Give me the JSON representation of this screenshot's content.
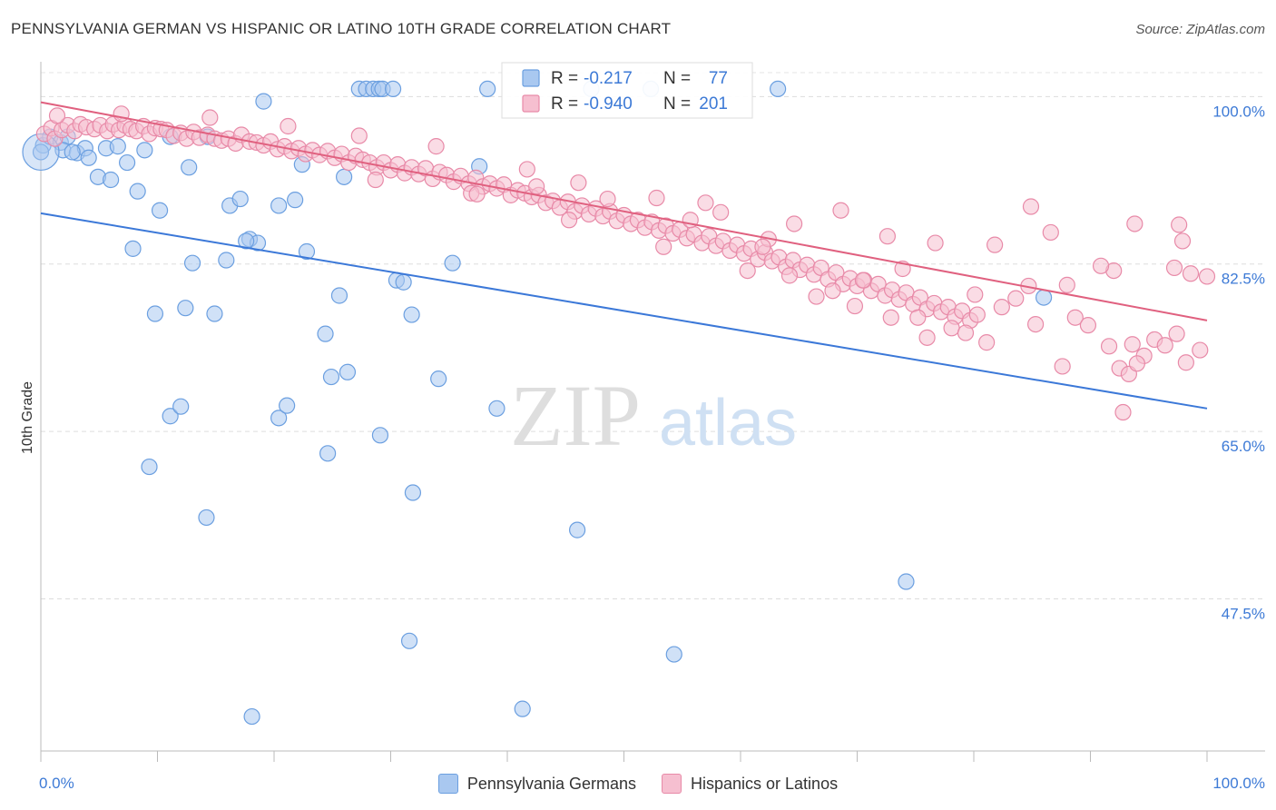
{
  "title": "PENNSYLVANIA GERMAN VS HISPANIC OR LATINO 10TH GRADE CORRELATION CHART",
  "source": "Source: ZipAtlas.com",
  "watermark": {
    "zip": "ZIP",
    "atlas": "atlas"
  },
  "chart_data": {
    "type": "scatter",
    "ylabel": "10th Grade",
    "xlim": [
      0,
      100
    ],
    "ylim": [
      31.6,
      102.5
    ],
    "x_tick_labels": [
      "0.0%",
      "100.0%"
    ],
    "y_ticks": [
      {
        "value": 100.0,
        "label": "100.0%"
      },
      {
        "value": 82.5,
        "label": "82.5%"
      },
      {
        "value": 65.0,
        "label": "65.0%"
      },
      {
        "value": 47.5,
        "label": "47.5%"
      }
    ],
    "grid": true,
    "legend_position": "bottom",
    "stats_box": [
      {
        "r_label": "R =",
        "r_value": "-0.217",
        "n_label": "N =",
        "n_value": "77"
      },
      {
        "r_label": "R =",
        "r_value": "-0.940",
        "n_label": "N =",
        "n_value": "201"
      }
    ],
    "series": [
      {
        "name": "Pennsylvania Germans",
        "color": "#6b9fe0",
        "fill": "#a9c8f0",
        "line_color": "#3b78d8",
        "trend": [
          [
            0,
            87.8
          ],
          [
            100,
            67.4
          ]
        ],
        "points": [
          [
            0.2,
            94.9
          ],
          [
            0.8,
            95.8
          ],
          [
            1.7,
            95.2
          ],
          [
            2.3,
            95.8
          ],
          [
            1.9,
            94.4
          ],
          [
            3.1,
            94.1
          ],
          [
            3.8,
            94.6
          ],
          [
            2.7,
            94.2
          ],
          [
            4.1,
            93.6
          ],
          [
            4.9,
            91.6
          ],
          [
            6.0,
            91.3
          ],
          [
            5.6,
            94.6
          ],
          [
            6.6,
            94.8
          ],
          [
            7.4,
            93.1
          ],
          [
            8.9,
            94.4
          ],
          [
            8.3,
            90.1
          ],
          [
            10.2,
            88.1
          ],
          [
            11.1,
            95.8
          ],
          [
            12.7,
            92.6
          ],
          [
            14.3,
            95.8
          ],
          [
            16.2,
            88.6
          ],
          [
            17.1,
            89.3
          ],
          [
            17.9,
            85.1
          ],
          [
            18.6,
            84.7
          ],
          [
            19.1,
            99.5
          ],
          [
            20.4,
            88.6
          ],
          [
            21.8,
            89.2
          ],
          [
            22.4,
            92.9
          ],
          [
            26.0,
            91.6
          ],
          [
            27.3,
            100.8
          ],
          [
            27.9,
            100.8
          ],
          [
            28.5,
            100.8
          ],
          [
            29.0,
            100.8
          ],
          [
            29.3,
            100.8
          ],
          [
            30.2,
            100.8
          ],
          [
            37.6,
            92.7
          ],
          [
            38.3,
            100.8
          ],
          [
            47.2,
            100.8
          ],
          [
            52.3,
            100.8
          ],
          [
            63.2,
            100.8
          ],
          [
            7.9,
            84.1
          ],
          [
            13.0,
            82.6
          ],
          [
            15.9,
            82.9
          ],
          [
            17.6,
            84.9
          ],
          [
            22.8,
            83.8
          ],
          [
            30.5,
            80.8
          ],
          [
            31.1,
            80.6
          ],
          [
            35.3,
            82.6
          ],
          [
            9.8,
            77.3
          ],
          [
            12.4,
            77.9
          ],
          [
            14.9,
            77.3
          ],
          [
            25.6,
            79.2
          ],
          [
            31.8,
            77.2
          ],
          [
            24.4,
            75.2
          ],
          [
            24.9,
            70.7
          ],
          [
            26.3,
            71.2
          ],
          [
            34.1,
            70.5
          ],
          [
            11.1,
            66.6
          ],
          [
            12.0,
            67.6
          ],
          [
            20.4,
            66.4
          ],
          [
            21.1,
            67.7
          ],
          [
            29.1,
            64.6
          ],
          [
            39.1,
            67.4
          ],
          [
            9.3,
            61.3
          ],
          [
            24.6,
            62.7
          ],
          [
            31.9,
            58.6
          ],
          [
            14.2,
            56.0
          ],
          [
            46.0,
            54.7
          ],
          [
            74.2,
            49.3
          ],
          [
            31.6,
            43.1
          ],
          [
            54.3,
            41.7
          ],
          [
            18.1,
            35.2
          ],
          [
            41.3,
            36.0
          ],
          [
            86.0,
            79.0
          ],
          [
            0.0,
            94.2
          ]
        ]
      },
      {
        "name": "Hispanics or Latinos",
        "color": "#e88aa8",
        "fill": "#f6bfd0",
        "line_color": "#e0607f",
        "trend": [
          [
            0,
            99.4
          ],
          [
            100,
            76.6
          ]
        ],
        "points": [
          [
            0.3,
            96.1
          ],
          [
            0.9,
            96.7
          ],
          [
            1.2,
            95.6
          ],
          [
            1.8,
            96.5
          ],
          [
            2.3,
            97.0
          ],
          [
            2.9,
            96.4
          ],
          [
            3.4,
            97.1
          ],
          [
            3.9,
            96.8
          ],
          [
            4.6,
            96.6
          ],
          [
            5.1,
            97.0
          ],
          [
            5.7,
            96.4
          ],
          [
            6.2,
            97.1
          ],
          [
            6.7,
            96.5
          ],
          [
            7.2,
            97.0
          ],
          [
            7.7,
            96.6
          ],
          [
            8.2,
            96.4
          ],
          [
            8.8,
            96.9
          ],
          [
            9.3,
            96.1
          ],
          [
            9.8,
            96.7
          ],
          [
            10.3,
            96.6
          ],
          [
            10.8,
            96.5
          ],
          [
            11.4,
            95.9
          ],
          [
            12.0,
            96.2
          ],
          [
            12.5,
            95.6
          ],
          [
            13.1,
            96.3
          ],
          [
            13.6,
            95.7
          ],
          [
            14.3,
            96.0
          ],
          [
            14.9,
            95.6
          ],
          [
            15.5,
            95.4
          ],
          [
            16.1,
            95.6
          ],
          [
            16.7,
            95.1
          ],
          [
            17.2,
            96.0
          ],
          [
            17.9,
            95.3
          ],
          [
            18.5,
            95.2
          ],
          [
            19.1,
            94.9
          ],
          [
            19.7,
            95.3
          ],
          [
            20.3,
            94.5
          ],
          [
            20.9,
            94.8
          ],
          [
            21.5,
            94.3
          ],
          [
            22.1,
            94.6
          ],
          [
            22.7,
            94.0
          ],
          [
            23.3,
            94.4
          ],
          [
            23.9,
            93.9
          ],
          [
            24.6,
            94.3
          ],
          [
            25.2,
            93.6
          ],
          [
            25.8,
            94.0
          ],
          [
            26.4,
            93.1
          ],
          [
            27.0,
            93.8
          ],
          [
            27.6,
            93.4
          ],
          [
            28.2,
            93.1
          ],
          [
            28.8,
            92.6
          ],
          [
            29.4,
            93.1
          ],
          [
            30.0,
            92.3
          ],
          [
            30.6,
            92.9
          ],
          [
            31.2,
            92.0
          ],
          [
            31.8,
            92.6
          ],
          [
            32.4,
            91.9
          ],
          [
            33.0,
            92.5
          ],
          [
            33.6,
            91.4
          ],
          [
            34.2,
            92.1
          ],
          [
            34.8,
            91.8
          ],
          [
            35.4,
            91.1
          ],
          [
            36.0,
            91.7
          ],
          [
            36.7,
            90.9
          ],
          [
            37.3,
            91.5
          ],
          [
            37.9,
            90.6
          ],
          [
            38.5,
            90.9
          ],
          [
            39.1,
            90.4
          ],
          [
            39.7,
            90.8
          ],
          [
            40.3,
            89.7
          ],
          [
            40.9,
            90.2
          ],
          [
            41.5,
            89.9
          ],
          [
            42.1,
            89.5
          ],
          [
            42.7,
            89.7
          ],
          [
            43.3,
            88.9
          ],
          [
            43.9,
            89.1
          ],
          [
            44.5,
            88.4
          ],
          [
            45.2,
            89.0
          ],
          [
            45.8,
            88.0
          ],
          [
            46.4,
            88.6
          ],
          [
            47.0,
            87.7
          ],
          [
            47.6,
            88.3
          ],
          [
            48.2,
            87.5
          ],
          [
            48.8,
            88.0
          ],
          [
            49.4,
            87.0
          ],
          [
            50.0,
            87.6
          ],
          [
            50.6,
            86.7
          ],
          [
            51.2,
            87.1
          ],
          [
            51.8,
            86.3
          ],
          [
            52.4,
            86.9
          ],
          [
            53.0,
            86.0
          ],
          [
            53.6,
            86.5
          ],
          [
            54.2,
            85.7
          ],
          [
            54.8,
            86.1
          ],
          [
            55.4,
            85.2
          ],
          [
            56.0,
            85.6
          ],
          [
            56.7,
            84.7
          ],
          [
            57.3,
            85.4
          ],
          [
            57.9,
            84.4
          ],
          [
            58.5,
            84.9
          ],
          [
            59.1,
            83.9
          ],
          [
            59.7,
            84.5
          ],
          [
            60.3,
            83.6
          ],
          [
            60.9,
            84.1
          ],
          [
            61.5,
            83.0
          ],
          [
            62.1,
            83.7
          ],
          [
            62.7,
            82.8
          ],
          [
            63.3,
            83.2
          ],
          [
            63.9,
            82.2
          ],
          [
            64.5,
            82.9
          ],
          [
            65.1,
            81.9
          ],
          [
            65.7,
            82.4
          ],
          [
            66.3,
            81.4
          ],
          [
            66.9,
            82.1
          ],
          [
            67.5,
            80.9
          ],
          [
            68.2,
            81.6
          ],
          [
            68.8,
            80.4
          ],
          [
            69.4,
            81.0
          ],
          [
            70.0,
            80.2
          ],
          [
            70.6,
            80.8
          ],
          [
            71.2,
            79.7
          ],
          [
            71.8,
            80.4
          ],
          [
            72.4,
            79.2
          ],
          [
            73.0,
            79.8
          ],
          [
            73.6,
            78.8
          ],
          [
            74.2,
            79.5
          ],
          [
            74.8,
            78.3
          ],
          [
            75.4,
            79.0
          ],
          [
            76.0,
            77.8
          ],
          [
            76.6,
            78.4
          ],
          [
            77.2,
            77.5
          ],
          [
            77.8,
            78.0
          ],
          [
            78.4,
            77.0
          ],
          [
            79.0,
            77.6
          ],
          [
            79.7,
            76.6
          ],
          [
            80.3,
            77.2
          ],
          [
            1.4,
            98.0
          ],
          [
            6.9,
            98.2
          ],
          [
            14.5,
            97.8
          ],
          [
            21.2,
            96.9
          ],
          [
            27.3,
            95.9
          ],
          [
            33.9,
            94.8
          ],
          [
            41.7,
            92.4
          ],
          [
            48.6,
            89.3
          ],
          [
            55.7,
            87.1
          ],
          [
            62.4,
            85.1
          ],
          [
            28.7,
            91.3
          ],
          [
            36.9,
            89.9
          ],
          [
            45.3,
            87.1
          ],
          [
            53.4,
            84.3
          ],
          [
            60.6,
            81.8
          ],
          [
            67.9,
            79.7
          ],
          [
            75.2,
            76.9
          ],
          [
            83.6,
            78.9
          ],
          [
            88.0,
            80.3
          ],
          [
            92.0,
            81.8
          ],
          [
            97.2,
            82.1
          ],
          [
            81.8,
            84.5
          ],
          [
            84.9,
            88.5
          ],
          [
            86.6,
            85.8
          ],
          [
            90.9,
            82.3
          ],
          [
            93.8,
            86.7
          ],
          [
            97.6,
            86.6
          ],
          [
            100.0,
            81.2
          ],
          [
            97.9,
            84.9
          ],
          [
            76.7,
            84.7
          ],
          [
            72.6,
            85.4
          ],
          [
            66.5,
            79.1
          ],
          [
            69.8,
            78.1
          ],
          [
            78.1,
            75.8
          ],
          [
            79.3,
            75.3
          ],
          [
            81.1,
            74.3
          ],
          [
            82.4,
            78.0
          ],
          [
            85.3,
            76.2
          ],
          [
            88.7,
            76.9
          ],
          [
            89.8,
            76.1
          ],
          [
            91.6,
            73.9
          ],
          [
            93.6,
            74.1
          ],
          [
            94.6,
            72.9
          ],
          [
            95.5,
            74.6
          ],
          [
            96.4,
            74.0
          ],
          [
            97.4,
            75.2
          ],
          [
            98.2,
            72.2
          ],
          [
            99.4,
            73.5
          ],
          [
            87.6,
            71.8
          ],
          [
            92.5,
            71.6
          ],
          [
            93.3,
            71.0
          ],
          [
            94.0,
            72.1
          ],
          [
            76.0,
            74.8
          ],
          [
            72.9,
            76.9
          ],
          [
            58.3,
            87.9
          ],
          [
            61.9,
            84.3
          ],
          [
            64.6,
            86.7
          ],
          [
            68.6,
            88.1
          ],
          [
            52.8,
            89.4
          ],
          [
            46.1,
            91.0
          ],
          [
            37.4,
            89.8
          ],
          [
            42.5,
            90.6
          ],
          [
            57.0,
            88.9
          ],
          [
            64.2,
            81.3
          ],
          [
            70.5,
            80.8
          ],
          [
            80.1,
            79.3
          ],
          [
            84.7,
            80.2
          ],
          [
            73.9,
            82.0
          ],
          [
            98.6,
            81.5
          ],
          [
            92.8,
            67.0
          ]
        ]
      }
    ]
  }
}
